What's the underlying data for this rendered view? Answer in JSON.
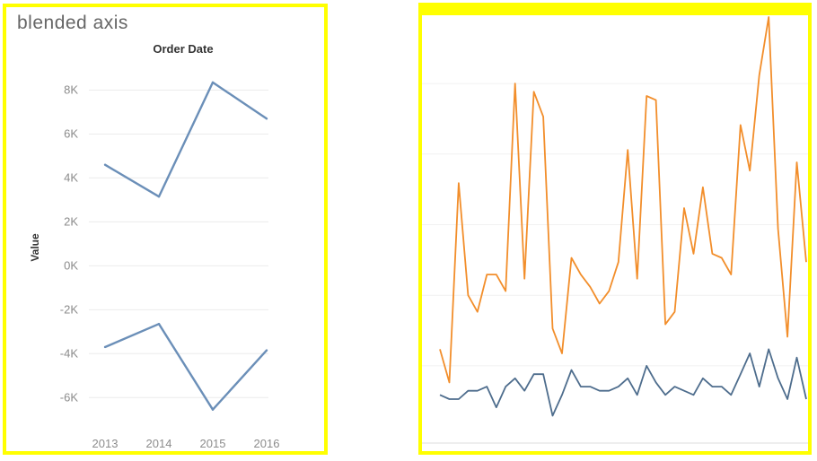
{
  "left_panel": {
    "title": "blended axis"
  },
  "chart_data": [
    {
      "type": "line",
      "xlabel": "Order Date",
      "ylabel": "Value",
      "categories": [
        "2013",
        "2014",
        "2015",
        "2016"
      ],
      "ylim": [
        -7500,
        9000
      ],
      "yticks": [
        8000,
        6000,
        4000,
        2000,
        0,
        -2000,
        -4000,
        -6000
      ],
      "ytick_labels": [
        "8K",
        "6K",
        "4K",
        "2K",
        "0K",
        "-2K",
        "-4K",
        "-6K"
      ],
      "grid": true,
      "color": "#6b8fb8",
      "series": [
        {
          "values": [
            4600,
            3150,
            8350,
            6700
          ]
        },
        {
          "values": [
            -3700,
            -2650,
            -6550,
            -3850
          ]
        }
      ]
    },
    {
      "type": "line",
      "grid": true,
      "ylim": [
        0,
        100
      ],
      "series": [
        {
          "color": "#f28e2b",
          "values": [
            20,
            12,
            60,
            33,
            29,
            38,
            38,
            34,
            84,
            37,
            82,
            76,
            25,
            19,
            42,
            38,
            35,
            31,
            34,
            41,
            68,
            37,
            81,
            80,
            26,
            29,
            54,
            43,
            59,
            43,
            42,
            38,
            74,
            63,
            86,
            100,
            49,
            23,
            65,
            41
          ]
        },
        {
          "color": "#4e6d8d",
          "values": [
            9,
            8,
            8,
            10,
            10,
            11,
            6,
            11,
            13,
            10,
            14,
            14,
            4,
            9,
            15,
            11,
            11,
            10,
            10,
            11,
            13,
            9,
            16,
            12,
            9,
            11,
            10,
            9,
            13,
            11,
            11,
            9,
            14,
            19,
            11,
            20,
            13,
            8,
            18,
            8
          ]
        }
      ]
    }
  ]
}
